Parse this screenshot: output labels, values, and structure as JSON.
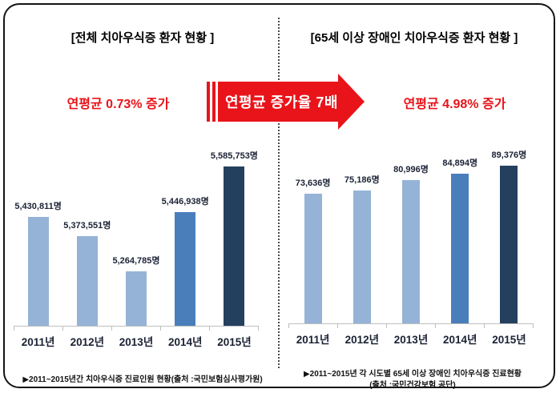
{
  "colors": {
    "bar_light": "#95b3d7",
    "bar_medium": "#4a7ebb",
    "bar_dark": "#24405e",
    "accent_red": "#e8141a",
    "axis_line": "#bfbfbf",
    "label_dark": "#1b2235"
  },
  "left_panel": {
    "title": "[전체 치아우식증 환자 현황 ]",
    "growth_label": "연평균 0.73% 증가",
    "caption": "▶2011~2015년간 치아우식증 진료인원 현황(출처 :국민보험심사평가원)"
  },
  "right_panel": {
    "title": "[65세 이상 장애인 치아우식증 환자 현황 ]",
    "growth_label": "연평균 4.98% 증가",
    "caption_line1": "▶2011~2015년 각 시도별 65세 이상 장애인 치아우식증 진료현황",
    "caption_line2": "(출처 :국민건강보험 공단)"
  },
  "arrow": {
    "label": "연평균 증가율 7배"
  },
  "chart_data": [
    {
      "type": "bar",
      "title": "[전체 치아우식증 환자 현황 ]",
      "categories": [
        "2011년",
        "2012년",
        "2013년",
        "2014년",
        "2015년"
      ],
      "values": [
        5430811,
        5373551,
        5264785,
        5446938,
        5585753
      ],
      "data_labels": [
        "5,430,811명",
        "5,373,551명",
        "5,264,785명",
        "5,446,938명",
        "5,585,753명"
      ],
      "bar_colors": [
        "light",
        "light",
        "light",
        "medium",
        "dark"
      ],
      "ylim": [
        5100000,
        5600000
      ],
      "xlabel": "",
      "ylabel": "",
      "grid": false,
      "legend": false,
      "annotation": "연평균 0.73% 증가"
    },
    {
      "type": "bar",
      "title": "[65세 이상 장애인 치아우식증 환자 현황 ]",
      "categories": [
        "2011년",
        "2012년",
        "2013년",
        "2014년",
        "2015년"
      ],
      "values": [
        73636,
        75186,
        80996,
        84894,
        89376
      ],
      "data_labels": [
        "73,636명",
        "75,186명",
        "80,996명",
        "84,894명",
        "89,376명"
      ],
      "bar_colors": [
        "light",
        "light",
        "light",
        "medium",
        "dark"
      ],
      "ylim": [
        0,
        93000
      ],
      "xlabel": "",
      "ylabel": "",
      "grid": false,
      "legend": false,
      "annotation": "연평균 4.98% 증가"
    }
  ]
}
